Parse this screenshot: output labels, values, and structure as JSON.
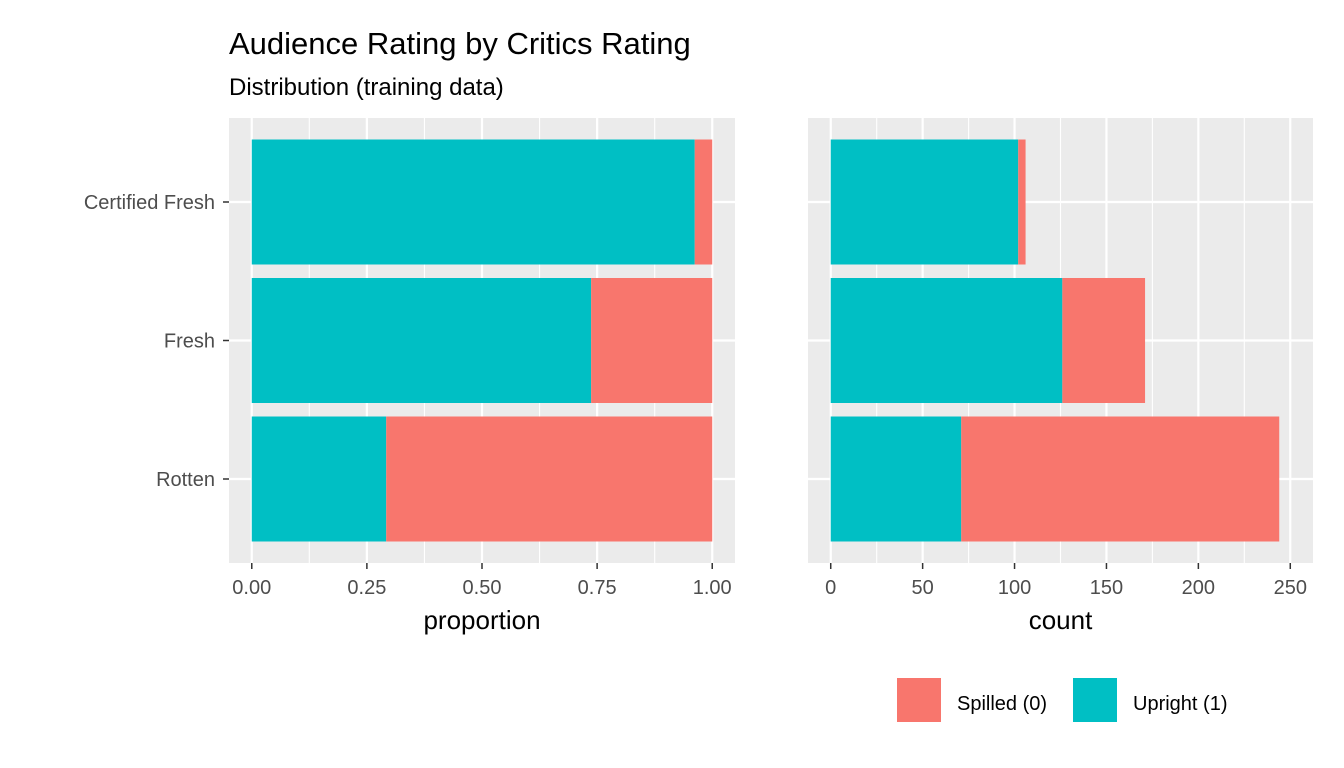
{
  "title": "Audience Rating by Critics Rating",
  "subtitle": "Distribution (training data)",
  "colors": {
    "spilled": "#F8766D",
    "upright": "#00BFC4",
    "panel": "#EBEBEB",
    "grid": "#FFFFFF",
    "tick": "#333333"
  },
  "legend": {
    "position": "bottom-right",
    "items": [
      {
        "key": "spilled",
        "label": "Spilled (0)"
      },
      {
        "key": "upright",
        "label": "Upright (1)"
      }
    ]
  },
  "chart_data": [
    {
      "type": "bar",
      "orientation": "horizontal",
      "stacked": true,
      "categories": [
        "Certified Fresh",
        "Fresh",
        "Rotten"
      ],
      "xlabel": "proportion",
      "xlim": [
        0,
        1
      ],
      "xticks": [
        0,
        0.25,
        0.5,
        0.75,
        1
      ],
      "xtick_labels": [
        "0.00",
        "0.25",
        "0.50",
        "0.75",
        "1.00"
      ],
      "grid": true,
      "series": [
        {
          "name": "Upright (1)",
          "values": [
            0.962,
            0.737,
            0.292
          ]
        },
        {
          "name": "Spilled (0)",
          "values": [
            0.038,
            0.263,
            0.708
          ]
        }
      ]
    },
    {
      "type": "bar",
      "orientation": "horizontal",
      "stacked": true,
      "categories": [
        "Certified Fresh",
        "Fresh",
        "Rotten"
      ],
      "xlabel": "count",
      "xlim": [
        0,
        250
      ],
      "xticks": [
        0,
        50,
        100,
        150,
        200,
        250
      ],
      "xtick_labels": [
        "0",
        "50",
        "100",
        "150",
        "200",
        "250"
      ],
      "grid": true,
      "series": [
        {
          "name": "Upright (1)",
          "values": [
            102,
            126,
            71
          ]
        },
        {
          "name": "Spilled (0)",
          "values": [
            4,
            45,
            173
          ]
        }
      ]
    }
  ]
}
